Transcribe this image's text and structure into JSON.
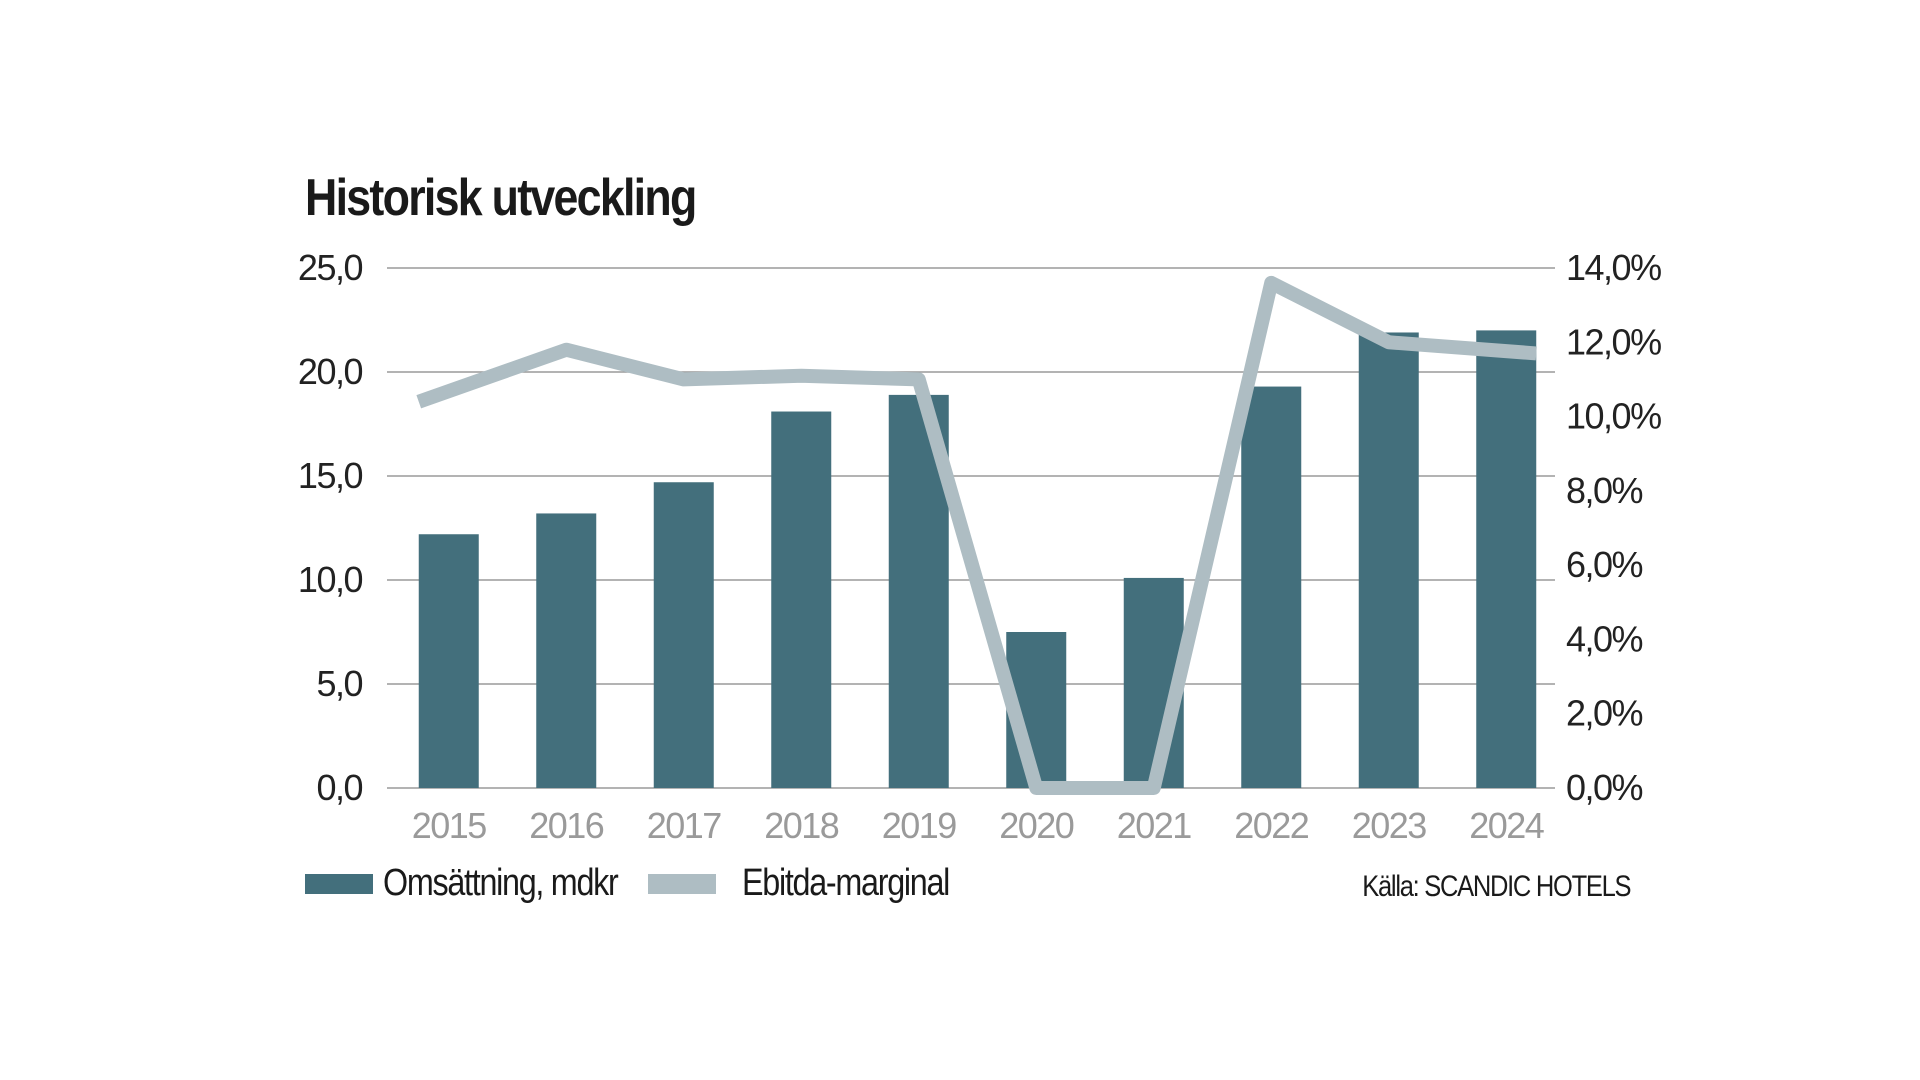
{
  "chart_data": {
    "type": "bar",
    "title": "Historisk utveckling",
    "categories": [
      "2015",
      "2016",
      "2017",
      "2018",
      "2019",
      "2020",
      "2021",
      "2022",
      "2023",
      "2024"
    ],
    "series": [
      {
        "name": "Omsättning, mdkr",
        "type": "bar",
        "axis": "left",
        "color": "#436f7c",
        "values": [
          12.2,
          13.2,
          14.7,
          18.1,
          18.9,
          7.5,
          10.1,
          19.3,
          21.9,
          22.0
        ]
      },
      {
        "name": "Ebitda-marginal",
        "type": "line",
        "axis": "right",
        "color": "#aebdc3",
        "values": [
          10.4,
          11.8,
          11.0,
          11.1,
          11.0,
          0.0,
          0.0,
          13.6,
          12.0,
          11.7
        ]
      }
    ],
    "left_axis": {
      "min": 0,
      "max": 25,
      "ticks": [
        "0,0",
        "5,0",
        "10,0",
        "15,0",
        "20,0",
        "25,0"
      ]
    },
    "right_axis": {
      "min": 0,
      "max": 14,
      "ticks": [
        "0,0%",
        "2,0%",
        "4,0%",
        "6,0%",
        "8,0%",
        "10,0%",
        "12,0%",
        "14,0%"
      ]
    },
    "grid": true,
    "legend_position": "bottom-left",
    "source": "Källa: SCANDIC HOTELS"
  }
}
